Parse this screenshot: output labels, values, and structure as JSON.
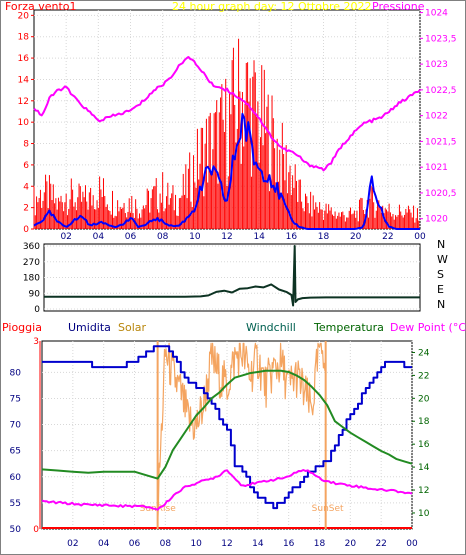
{
  "chart_data": [
    {
      "type": "line",
      "panel": "top",
      "title": "24 hour graph day:  12 Ottobre 2022",
      "left_label": "Forza vento1",
      "right_label": "Pressione",
      "x_ticks": [
        "02",
        "04",
        "06",
        "08",
        "10",
        "12",
        "14",
        "16",
        "18",
        "20",
        "22",
        "00"
      ],
      "y_left_ticks": [
        "20",
        "18",
        "16",
        "14",
        "12",
        "10",
        "8",
        "6",
        "4",
        "2",
        "0"
      ],
      "y_right_ticks": [
        "1024",
        "1023,5",
        "1023",
        "1022,5",
        "1022",
        "1021,5",
        "1021",
        "1020,5",
        "1020"
      ],
      "ylim_left": [
        0,
        20.5
      ],
      "ylim_right": [
        1019.8,
        1024.05
      ],
      "x_range": [
        0,
        24
      ],
      "colors": {
        "gust": "#ff0000",
        "wind_avg": "#0000ff",
        "pressure": "#ff00ff",
        "left_axis": "#ff0000",
        "right_axis": "#ff00ff",
        "title": "#ffff00"
      },
      "series": [
        {
          "key": "gust",
          "x": [
            0,
            0.5,
            1,
            1.5,
            2,
            2.5,
            3,
            3.5,
            4,
            4.5,
            5,
            5.5,
            6,
            6.5,
            7,
            7.5,
            8,
            8.5,
            9,
            9.5,
            10,
            10.5,
            11,
            11.5,
            12,
            12.5,
            13,
            13.5,
            14,
            14.5,
            15,
            15.5,
            16,
            16.5,
            17,
            17.5,
            18,
            18.5,
            19,
            19.5,
            20,
            20.5,
            21,
            21.5,
            22,
            22.5,
            23,
            23.5,
            24
          ],
          "values": [
            3,
            3.8,
            3.6,
            2.5,
            3.8,
            3.2,
            3,
            3.2,
            4.2,
            3.5,
            2.8,
            2.7,
            3,
            2.2,
            2.8,
            3.5,
            4,
            3,
            3.2,
            4.5,
            6.5,
            8.2,
            9,
            9.8,
            11,
            13,
            14.5,
            13.2,
            11.5,
            10.5,
            9,
            7,
            6,
            3.5,
            2.5,
            2.5,
            2,
            1.8,
            1.5,
            1.5,
            1.5,
            2.5,
            3,
            2.6,
            2,
            1.8,
            1.8,
            1.6,
            1.5
          ]
        },
        {
          "key": "wind_avg",
          "x": [
            0,
            0.5,
            1,
            1.5,
            2,
            2.5,
            3,
            3.5,
            4,
            4.5,
            5,
            5.5,
            6,
            6.5,
            7,
            7.5,
            8,
            8.5,
            9,
            9.5,
            10,
            10.5,
            11,
            11.5,
            12,
            12.5,
            13,
            13.5,
            14,
            14.5,
            15,
            15.5,
            16,
            16.5,
            17,
            17.5,
            18,
            18.5,
            19,
            19.5,
            20,
            20.5,
            21,
            21.5,
            22,
            22.5,
            23,
            23.5,
            24
          ],
          "values": [
            0.3,
            0.8,
            1.5,
            0.6,
            0.2,
            0.8,
            1.2,
            0.3,
            0.6,
            0.5,
            0.2,
            0.4,
            1,
            0.2,
            0.4,
            1,
            0.7,
            0.3,
            0.3,
            1,
            2,
            4.2,
            5.8,
            4.2,
            2.5,
            7.2,
            10.5,
            7.5,
            5.5,
            5.5,
            4,
            2.5,
            0.8,
            0.2,
            0,
            0,
            0,
            0,
            0,
            0,
            0,
            0.2,
            4.4,
            2,
            0.3,
            0,
            0,
            0,
            0
          ]
        },
        {
          "key": "pressure",
          "x": [
            0,
            0.5,
            1,
            1.5,
            2,
            2.5,
            3,
            3.5,
            4,
            4.5,
            5,
            5.5,
            6,
            6.5,
            7,
            7.5,
            8,
            8.5,
            9,
            9.5,
            10,
            10.5,
            11,
            11.5,
            12,
            12.5,
            13,
            13.5,
            14,
            14.5,
            15,
            15.5,
            16,
            16.5,
            17,
            17.5,
            18,
            18.5,
            19,
            19.5,
            20,
            20.5,
            21,
            21.5,
            22,
            22.5,
            23,
            23.5,
            24
          ],
          "values": [
            1022.15,
            1022,
            1022.35,
            1022.5,
            1022.55,
            1022.35,
            1022.2,
            1022.05,
            1021.9,
            1021.95,
            1022,
            1022.05,
            1022.1,
            1022.2,
            1022.35,
            1022.5,
            1022.6,
            1022.75,
            1022.95,
            1023.15,
            1023.02,
            1022.85,
            1022.62,
            1022.55,
            1022.5,
            1022.4,
            1022.3,
            1022.15,
            1021.95,
            1021.7,
            1021.5,
            1021.35,
            1021.3,
            1021.2,
            1021.05,
            1021.02,
            1020.95,
            1021.1,
            1021.35,
            1021.55,
            1021.7,
            1021.85,
            1021.9,
            1021.95,
            1022.05,
            1022.2,
            1022.3,
            1022.4,
            1022.5
          ]
        }
      ]
    },
    {
      "type": "line",
      "panel": "direction",
      "x_range": [
        0,
        24
      ],
      "ylim": [
        0,
        360
      ],
      "y_ticks": [
        "360",
        "270",
        "180",
        "90",
        "0"
      ],
      "compass": [
        "N",
        "W",
        "S",
        "E",
        "N"
      ],
      "colors": {
        "direction": "#0d3323"
      },
      "series": [
        {
          "key": "direction",
          "x": [
            0,
            1,
            2,
            3,
            4,
            5,
            6,
            7,
            8,
            9,
            10,
            10.5,
            11,
            11.5,
            12,
            12.5,
            13,
            13.5,
            14,
            14.5,
            15,
            15.5,
            15.8,
            15.9,
            16,
            16.05,
            16.2,
            16.5,
            17,
            18,
            19,
            20,
            21,
            22,
            23,
            24
          ],
          "values": [
            70,
            70,
            70,
            70,
            70,
            70,
            70,
            70,
            70,
            70,
            72,
            78,
            85,
            95,
            105,
            115,
            112,
            120,
            116,
            128,
            122,
            110,
            80,
            20,
            360,
            40,
            55,
            62,
            65,
            66,
            66,
            66,
            66,
            66,
            66,
            66
          ]
        }
      ]
    },
    {
      "type": "line",
      "panel": "bottom",
      "legend": [
        "Pioggia",
        "Umidita",
        "Solar",
        "Windchill",
        "Temperatura",
        "Dew Point (°C)"
      ],
      "x_ticks": [
        "02",
        "04",
        "06",
        "08",
        "10",
        "12",
        "14",
        "16",
        "18",
        "20",
        "22",
        "00"
      ],
      "y_left_ticks": [
        "80",
        "75",
        "70",
        "65",
        "60",
        "55",
        "50"
      ],
      "y_right_ticks": [
        "24",
        "22",
        "20",
        "18",
        "16",
        "14",
        "12",
        "10"
      ],
      "y_rain_ticks": [
        "3",
        "0"
      ],
      "ylim_left": [
        50,
        86
      ],
      "ylim_right": [
        8.6,
        25
      ],
      "x_range": [
        0,
        24
      ],
      "annotations": [
        "SunRise",
        "SunSet"
      ],
      "sunrise_x": 7.5,
      "sunset_x": 18.4,
      "colors": {
        "rain": "#ff0000",
        "humidity": "#0000cd",
        "solar": "#f4a460",
        "windchill": "#006400",
        "temperature": "#228b22",
        "dewpoint": "#ff00ff",
        "sun_lines": "#f4a460"
      },
      "series": [
        {
          "key": "humidity",
          "x": [
            0,
            1,
            2,
            3,
            4,
            5,
            6,
            7,
            7.5,
            8,
            8.5,
            9,
            9.5,
            10,
            10.5,
            11,
            11.5,
            12,
            12.5,
            13,
            13.5,
            14,
            14.5,
            15,
            15.5,
            16,
            16.5,
            17,
            17.5,
            18,
            18.5,
            19,
            19.5,
            20,
            20.5,
            21,
            21.5,
            22,
            22.5,
            23,
            23.5,
            24
          ],
          "values": [
            82,
            82,
            82,
            81.5,
            81,
            81,
            82,
            84,
            85,
            85,
            83,
            80,
            78,
            77,
            76,
            74,
            71,
            69,
            62,
            61,
            58,
            56,
            55,
            54,
            55,
            57,
            58,
            60,
            61,
            62,
            63,
            66,
            69,
            72,
            74,
            77,
            79,
            81,
            82,
            82,
            81,
            81
          ]
        },
        {
          "key": "temperature",
          "x": [
            0,
            1,
            2,
            3,
            4,
            5,
            6,
            7,
            7.5,
            8,
            8.5,
            9,
            9.5,
            10,
            10.5,
            11,
            11.5,
            12,
            12.5,
            13,
            13.5,
            14,
            14.5,
            15,
            15.5,
            16,
            16.5,
            17,
            17.5,
            18,
            18.5,
            19,
            19.5,
            20,
            20.5,
            21,
            21.5,
            22,
            22.5,
            23,
            23.5,
            24
          ],
          "values": [
            13.8,
            13.7,
            13.6,
            13.5,
            13.6,
            13.6,
            13.6,
            13.2,
            13,
            14,
            15.5,
            16.5,
            17.5,
            18.5,
            19.2,
            20,
            20.5,
            21.2,
            21.8,
            22,
            22.2,
            22.3,
            22.4,
            22.4,
            22.4,
            22.3,
            22,
            21.6,
            21,
            20.3,
            19.4,
            18,
            17.5,
            17,
            16.6,
            16.2,
            15.8,
            15.4,
            15.1,
            14.7,
            14.5,
            14.3
          ]
        },
        {
          "key": "dewpoint",
          "x": [
            0,
            1,
            2,
            3,
            4,
            5,
            6,
            7,
            7.5,
            8,
            8.5,
            9,
            9.5,
            10,
            10.5,
            11,
            11.5,
            12,
            12.5,
            13,
            13.5,
            14,
            14.5,
            15,
            15.5,
            16,
            16.5,
            17,
            17.5,
            18,
            18.5,
            19,
            19.5,
            20,
            20.5,
            21,
            21.5,
            22,
            22.5,
            23,
            23.5,
            24
          ],
          "values": [
            11,
            10.9,
            10.8,
            10.7,
            10.7,
            10.6,
            10.6,
            10.5,
            10.3,
            10.8,
            11.5,
            12,
            12.4,
            12.6,
            12.8,
            13,
            13.3,
            13.8,
            13,
            12.4,
            12.5,
            12.6,
            12.8,
            12.9,
            13,
            13.2,
            13.5,
            13.8,
            13.5,
            13,
            12.8,
            12.6,
            12.5,
            12.4,
            12.3,
            12.2,
            12.1,
            12,
            12,
            11.9,
            11.8,
            11.7
          ]
        },
        {
          "key": "solar",
          "x": [
            7.5,
            8,
            8.5,
            9,
            9.5,
            10,
            10.5,
            11,
            11.5,
            12,
            12.5,
            13,
            13.5,
            14,
            14.5,
            15,
            15.5,
            16,
            16.5,
            17,
            17.5,
            18,
            18.4
          ],
          "values": [
            10,
            24,
            22,
            20.5,
            18,
            17.5,
            19.5,
            23.5,
            22,
            21,
            23.5,
            24,
            22,
            23.5,
            21,
            22.5,
            23,
            21,
            22,
            20.5,
            19,
            24.5,
            24
          ]
        }
      ]
    }
  ]
}
